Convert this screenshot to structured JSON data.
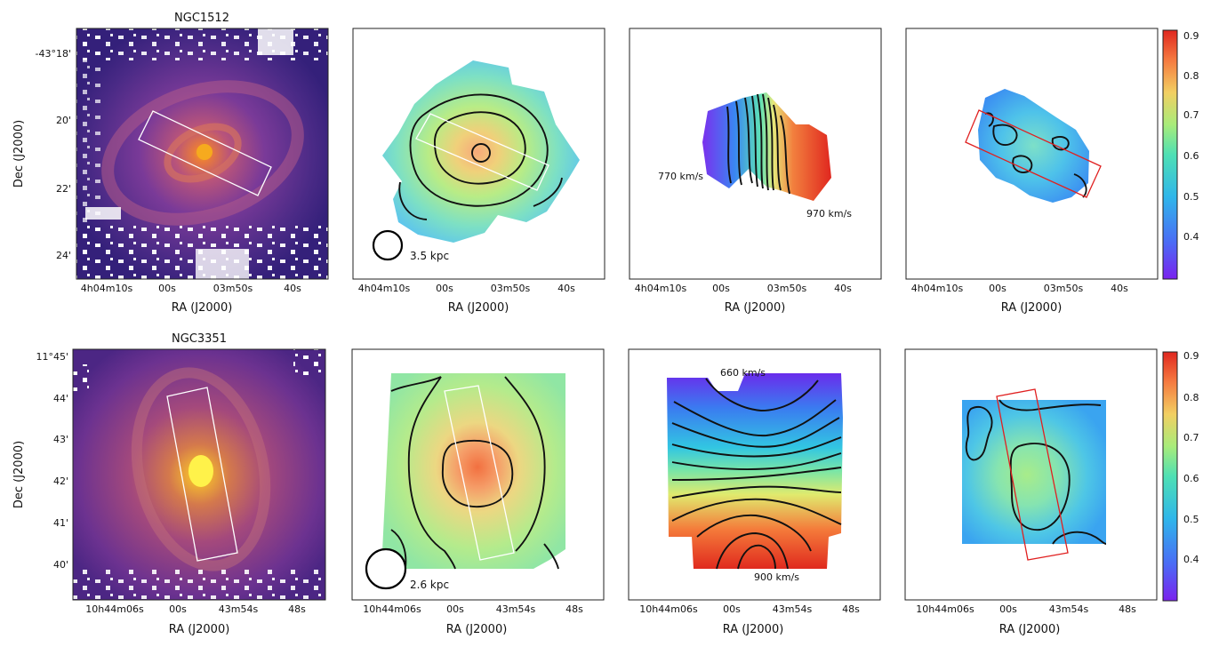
{
  "figure": {
    "rows": [
      {
        "galaxy": "NGC1512",
        "dec_label": "Dec (J2000)",
        "ra_label": "RA (J2000)",
        "dec_ticks": [
          "-43°18'",
          "20'",
          "22'",
          "24'"
        ],
        "ra_ticks": [
          "4h04m10s",
          "00s",
          "03m50s",
          "40s"
        ],
        "beam_label": "3.5 kpc",
        "velocity_low": "770 km/s",
        "velocity_high": "970 km/s",
        "colorbar_ticks": [
          "0.9",
          "0.8",
          "0.7",
          "0.6",
          "0.5",
          "0.4"
        ]
      },
      {
        "galaxy": "NGC3351",
        "dec_label": "Dec (J2000)",
        "ra_label": "RA (J2000)",
        "dec_ticks": [
          "11°45'",
          "44'",
          "43'",
          "42'",
          "41'",
          "40'"
        ],
        "ra_ticks": [
          "10h44m06s",
          "00s",
          "43m54s",
          "48s"
        ],
        "beam_label": "2.6 kpc",
        "velocity_low": "660 km/s",
        "velocity_high": "900 km/s",
        "colorbar_ticks": [
          "0.9",
          "0.8",
          "0.7",
          "0.6",
          "0.5",
          "0.4"
        ]
      }
    ],
    "colors": {
      "slit_optical": "#ffffff",
      "slit_ratio": "#e02020",
      "contour": "#111111"
    }
  },
  "chart_data": [
    {
      "type": "heatmap",
      "galaxy": "NGC1512",
      "panels": [
        "optical image with slit",
        "integrated intensity map with contours",
        "velocity field",
        "line ratio map with slit"
      ],
      "velocity_range_kms": [
        770,
        970
      ],
      "colorbar": {
        "range": [
          0.3,
          0.92
        ],
        "ticks": [
          0.4,
          0.5,
          0.6,
          0.7,
          0.8,
          0.9
        ]
      },
      "xlabel": "RA (J2000)",
      "ylabel": "Dec (J2000)"
    },
    {
      "type": "heatmap",
      "galaxy": "NGC3351",
      "panels": [
        "optical image with slit",
        "integrated intensity map with contours",
        "velocity field",
        "line ratio map with slit"
      ],
      "velocity_range_kms": [
        660,
        900
      ],
      "colorbar": {
        "range": [
          0.3,
          0.92
        ],
        "ticks": [
          0.4,
          0.5,
          0.6,
          0.7,
          0.8,
          0.9
        ]
      },
      "xlabel": "RA (J2000)",
      "ylabel": "Dec (J2000)"
    }
  ]
}
